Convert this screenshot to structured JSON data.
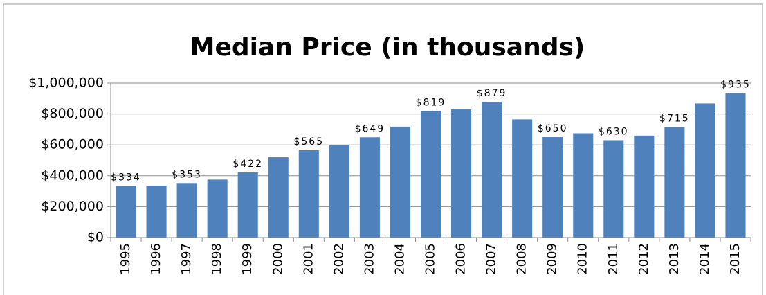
{
  "chart_data": {
    "type": "bar",
    "title": "Median Price (in thousands)",
    "categories": [
      "1995",
      "1996",
      "1997",
      "1998",
      "1999",
      "2000",
      "2001",
      "2002",
      "2003",
      "2004",
      "2005",
      "2006",
      "2007",
      "2008",
      "2009",
      "2010",
      "2011",
      "2012",
      "2013",
      "2014",
      "2015"
    ],
    "values": [
      334000,
      336000,
      353000,
      375000,
      422000,
      520000,
      565000,
      600000,
      649000,
      718000,
      819000,
      830000,
      879000,
      765000,
      650000,
      675000,
      630000,
      660000,
      715000,
      868000,
      935000
    ],
    "value_labels": [
      "$334",
      null,
      "$353",
      null,
      "$422",
      null,
      "$565",
      null,
      "$649",
      null,
      "$819",
      null,
      "$879",
      null,
      "$650",
      null,
      "$630",
      null,
      "$715",
      null,
      "$935"
    ],
    "color": "#4f81bd",
    "ylim": [
      0,
      1000000
    ],
    "yticks": [
      {
        "value": 0,
        "label": "$0"
      },
      {
        "value": 200000,
        "label": "$200,000"
      },
      {
        "value": 400000,
        "label": "$400,000"
      },
      {
        "value": 600000,
        "label": "$600,000"
      },
      {
        "value": 800000,
        "label": "$800,000"
      },
      {
        "value": 1000000,
        "label": "$1,000,000"
      }
    ],
    "grid": true
  }
}
